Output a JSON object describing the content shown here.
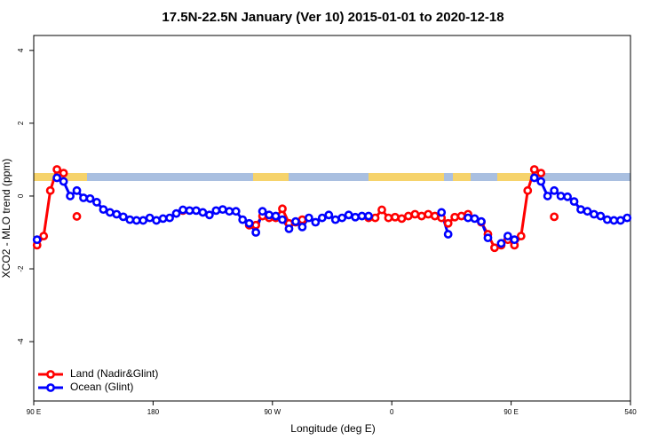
{
  "chart_data": {
    "type": "line",
    "title": "17.5N-22.5N January (Ver 10)   2015-01-01 to 2020-12-18",
    "x_label": "Longitude (deg E)",
    "y_label": "XCO2 - MLO trend (ppm)",
    "xlim": [
      90,
      540
    ],
    "ylim": [
      -5.63,
      4.41
    ],
    "xticks": [
      {
        "value": 90,
        "label": "90 E"
      },
      180,
      {
        "value": 270,
        "label": "90 W"
      },
      {
        "value": 360,
        "label": "0"
      },
      {
        "value": 450,
        "label": "90 E"
      },
      540
    ],
    "yticks": [
      -4,
      -2,
      0,
      2,
      4
    ],
    "legend": "bottom-left",
    "x": [
      92.5,
      97.5,
      102.5,
      107.5,
      112.5,
      117.5,
      122.5,
      127.5,
      132.5,
      137.5,
      142.5,
      147.5,
      152.5,
      157.5,
      162.5,
      167.5,
      172.5,
      177.5,
      182.5,
      187.5,
      192.5,
      197.5,
      202.5,
      207.5,
      212.5,
      217.5,
      222.5,
      227.5,
      232.5,
      237.5,
      242.5,
      247.5,
      252.5,
      257.5,
      262.5,
      267.5,
      272.5,
      277.5,
      282.5,
      287.5,
      292.5,
      297.5,
      302.5,
      307.5,
      312.5,
      317.5,
      322.5,
      327.5,
      332.5,
      337.5,
      342.5,
      347.5,
      352.5,
      357.5,
      362.5,
      367.5,
      372.5,
      377.5,
      382.5,
      387.5,
      392.5,
      397.5,
      402.5,
      407.5,
      412.5,
      417.5,
      422.5,
      427.5,
      432.5,
      437.5,
      442.5,
      447.5,
      452.5,
      457.5,
      462.5,
      467.5,
      472.5,
      477.5,
      482.5,
      487.5,
      492.5,
      497.5,
      502.5,
      507.5,
      512.5,
      517.5,
      522.5,
      527.5,
      532.5,
      537.5
    ],
    "series": [
      {
        "name": "Land (Nadir&Glint)",
        "color": "#ff0000",
        "values": [
          -1.35,
          -1.1,
          0.15,
          0.73,
          0.63,
          null,
          -0.56,
          null,
          null,
          null,
          null,
          null,
          null,
          null,
          null,
          null,
          null,
          null,
          null,
          null,
          null,
          null,
          -0.4,
          null,
          null,
          null,
          null,
          null,
          null,
          null,
          null,
          null,
          -0.8,
          -0.8,
          -0.55,
          -0.6,
          -0.6,
          -0.35,
          -0.75,
          -0.72,
          -0.65,
          null,
          null,
          null,
          null,
          null,
          null,
          null,
          null,
          null,
          -0.6,
          -0.6,
          -0.38,
          -0.6,
          -0.58,
          -0.62,
          -0.55,
          -0.5,
          -0.55,
          -0.5,
          -0.55,
          -0.6,
          -0.75,
          -0.58,
          -0.55,
          -0.5,
          null,
          -0.72,
          -1.05,
          -1.42,
          -1.35,
          -1.2,
          -1.35,
          -1.1,
          0.15,
          0.73,
          0.63,
          null,
          -0.57,
          null,
          null,
          null,
          null,
          null,
          null,
          null,
          null,
          null,
          null,
          null
        ]
      },
      {
        "name": "Ocean (Glint)",
        "color": "#0000ff",
        "values": [
          -1.2,
          null,
          null,
          0.5,
          0.4,
          0.0,
          0.15,
          -0.05,
          -0.07,
          -0.17,
          -0.37,
          -0.45,
          -0.5,
          -0.57,
          -0.65,
          -0.67,
          -0.67,
          -0.6,
          -0.67,
          -0.62,
          -0.6,
          -0.48,
          -0.38,
          -0.4,
          -0.4,
          -0.45,
          -0.52,
          -0.4,
          -0.37,
          -0.42,
          -0.42,
          -0.65,
          -0.75,
          -1.0,
          -0.42,
          -0.52,
          -0.55,
          -0.65,
          -0.9,
          -0.7,
          -0.85,
          -0.6,
          -0.72,
          -0.6,
          -0.52,
          -0.65,
          -0.6,
          -0.52,
          -0.58,
          -0.55,
          -0.55,
          null,
          null,
          null,
          null,
          null,
          null,
          null,
          null,
          null,
          null,
          -0.45,
          -1.05,
          null,
          null,
          -0.6,
          -0.62,
          -0.7,
          -1.15,
          null,
          -1.3,
          -1.1,
          -1.2,
          null,
          null,
          0.5,
          0.4,
          0.0,
          0.15,
          0.0,
          -0.02,
          -0.15,
          -0.37,
          -0.42,
          -0.5,
          -0.55,
          -0.65,
          -0.67,
          -0.67,
          -0.6
        ]
      }
    ]
  }
}
